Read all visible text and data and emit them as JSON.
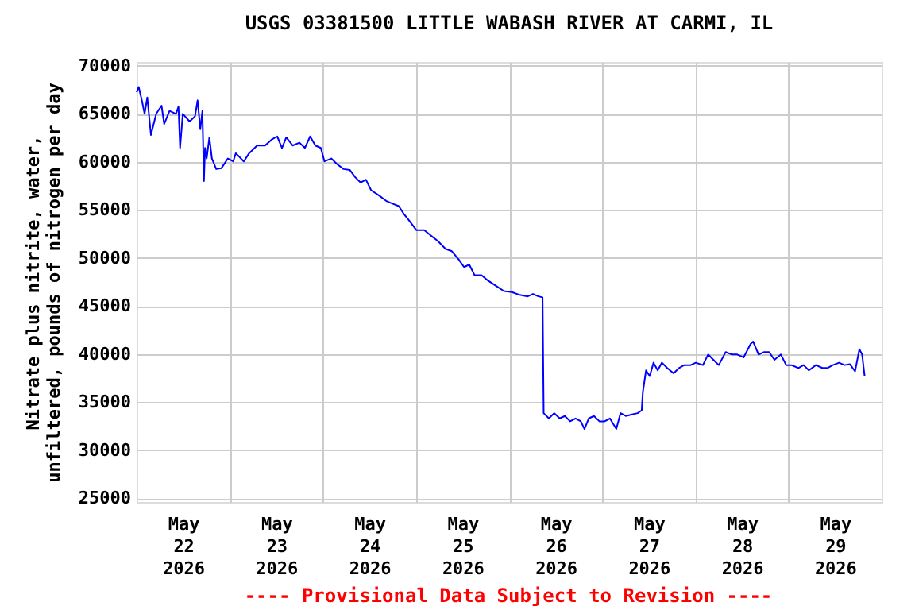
{
  "chart_data": {
    "type": "line",
    "title": "USGS 03381500 LITTLE WABASH RIVER AT CARMI, IL",
    "ylabel": "Nitrate plus nitrite, water,\nunfiltered, pounds of nitrogen per day",
    "annotations": [
      "---- Provisional Data Subject to Revision ----"
    ],
    "x": [
      "2026-05-22T00:00",
      "2026-05-22T00:32",
      "2026-05-22T01:21",
      "2026-05-22T02:03",
      "2026-05-22T02:45",
      "2026-05-22T03:17",
      "2026-05-22T03:41",
      "2026-05-22T05:03",
      "2026-05-22T06:26",
      "2026-05-22T07:06",
      "2026-05-22T08:29",
      "2026-05-22T10:08",
      "2026-05-22T10:47",
      "2026-05-22T11:12",
      "2026-05-22T11:54",
      "2026-05-22T13:40",
      "2026-05-22T15:03",
      "2026-05-22T15:43",
      "2026-05-22T16:25",
      "2026-05-22T16:57",
      "2026-05-22T17:21",
      "2026-05-22T17:38",
      "2026-05-22T18:03",
      "2026-05-22T18:45",
      "2026-05-22T19:24",
      "2026-05-22T20:31",
      "2026-05-22T21:52",
      "2026-05-22T23:31",
      "2026-05-23T00:54",
      "2026-05-23T01:34",
      "2026-05-23T03:37",
      "2026-05-23T05:00",
      "2026-05-23T07:03",
      "2026-05-23T09:06",
      "2026-05-23T10:45",
      "2026-05-23T12:14",
      "2026-05-23T13:28",
      "2026-05-23T14:34",
      "2026-05-23T16:12",
      "2026-05-23T17:58",
      "2026-05-23T19:22",
      "2026-05-23T20:43",
      "2026-05-23T22:04",
      "2026-05-23T23:28",
      "2026-05-24T00:25",
      "2026-05-24T02:10",
      "2026-05-24T03:34",
      "2026-05-24T05:20",
      "2026-05-24T06:58",
      "2026-05-24T08:20",
      "2026-05-24T09:43",
      "2026-05-24T11:05",
      "2026-05-24T12:26",
      "2026-05-24T14:29",
      "2026-05-24T16:17",
      "2026-05-24T17:56",
      "2026-05-24T19:34",
      "2026-05-24T20:55",
      "2026-05-24T22:02",
      "2026-05-25T00:05",
      "2026-05-25T02:08",
      "2026-05-25T03:46",
      "2026-05-25T05:32",
      "2026-05-25T07:35",
      "2026-05-25T09:14",
      "2026-05-25T11:00",
      "2026-05-25T12:23",
      "2026-05-25T13:44",
      "2026-05-25T15:06",
      "2026-05-25T16:54",
      "2026-05-25T18:32",
      "2026-05-25T20:36",
      "2026-05-25T22:39",
      "2026-05-26T00:42",
      "2026-05-26T02:45",
      "2026-05-26T04:48",
      "2026-05-26T06:09",
      "2026-05-26T07:31",
      "2026-05-26T08:37",
      "2026-05-26T08:54",
      "2026-05-26T10:15",
      "2026-05-26T11:37",
      "2026-05-26T13:01",
      "2026-05-26T14:22",
      "2026-05-26T15:43",
      "2026-05-26T17:07",
      "2026-05-26T18:28",
      "2026-05-26T19:25",
      "2026-05-26T20:31",
      "2026-05-26T21:52",
      "2026-05-26T23:16",
      "2026-05-27T00:37",
      "2026-05-27T01:58",
      "2026-05-27T03:37",
      "2026-05-27T04:43",
      "2026-05-27T06:04",
      "2026-05-27T07:28",
      "2026-05-27T09:07",
      "2026-05-27T10:10",
      "2026-05-27T10:28",
      "2026-05-27T11:17",
      "2026-05-27T12:14",
      "2026-05-27T13:13",
      "2026-05-27T14:17",
      "2026-05-27T15:23",
      "2026-05-27T16:44",
      "2026-05-27T18:23",
      "2026-05-27T19:47",
      "2026-05-27T21:08",
      "2026-05-27T22:46",
      "2026-05-28T00:07",
      "2026-05-28T01:56",
      "2026-05-28T03:17",
      "2026-05-28T04:38",
      "2026-05-28T06:02",
      "2026-05-28T07:48",
      "2026-05-28T09:26",
      "2026-05-28T10:47",
      "2026-05-28T12:26",
      "2026-05-28T14:14",
      "2026-05-28T14:53",
      "2026-05-28T16:17",
      "2026-05-28T17:38",
      "2026-05-28T19:00",
      "2026-05-28T20:23",
      "2026-05-28T22:02",
      "2026-05-28T23:23",
      "2026-05-29T00:44",
      "2026-05-29T02:32",
      "2026-05-29T03:54",
      "2026-05-29T05:15",
      "2026-05-29T07:04",
      "2026-05-29T08:42",
      "2026-05-29T10:03",
      "2026-05-29T11:25",
      "2026-05-29T13:03",
      "2026-05-29T14:26",
      "2026-05-29T15:48",
      "2026-05-29T17:09",
      "2026-05-29T18:16",
      "2026-05-29T18:58",
      "2026-05-29T19:37"
    ],
    "series": [
      {
        "color": "#0000ff",
        "values": [
          67250,
          67800,
          66400,
          65000,
          66700,
          64500,
          62800,
          65000,
          65850,
          63950,
          65300,
          65000,
          65750,
          61450,
          65000,
          64200,
          64750,
          66400,
          63400,
          65300,
          58000,
          61450,
          60350,
          62550,
          60350,
          59250,
          59350,
          60350,
          60050,
          60900,
          60050,
          60900,
          61700,
          61700,
          62300,
          62650,
          61450,
          62550,
          61700,
          62000,
          61450,
          62650,
          61700,
          61450,
          60050,
          60350,
          59800,
          59250,
          59150,
          58400,
          57850,
          58150,
          57050,
          56500,
          55950,
          55650,
          55400,
          54550,
          54000,
          52900,
          52900,
          52350,
          51800,
          50950,
          50700,
          49850,
          49050,
          49300,
          48200,
          48200,
          47650,
          47100,
          46550,
          46450,
          46150,
          46000,
          46250,
          46000,
          45900,
          33850,
          33300,
          33850,
          33300,
          33550,
          33000,
          33300,
          33000,
          32200,
          33300,
          33550,
          33000,
          33000,
          33300,
          32200,
          33850,
          33550,
          33700,
          33850,
          34150,
          36050,
          38300,
          37700,
          39100,
          38300,
          39100,
          38550,
          38000,
          38550,
          38850,
          38850,
          39100,
          38850,
          39950,
          39400,
          38850,
          40200,
          39950,
          39950,
          39650,
          41050,
          41300,
          39950,
          40200,
          40200,
          39400,
          39950,
          38850,
          38850,
          38550,
          38850,
          38300,
          38850,
          38550,
          38550,
          38850,
          39100,
          38850,
          38950,
          38200,
          40500,
          39950,
          37700
        ]
      }
    ],
    "xlim": [
      "2026-05-22T00:00",
      "2026-05-30T00:00"
    ],
    "xticks": [
      {
        "value": "2026-05-22T12:00",
        "label": "May\n22\n2026"
      },
      {
        "value": "2026-05-23T12:00",
        "label": "May\n23\n2026"
      },
      {
        "value": "2026-05-24T12:00",
        "label": "May\n24\n2026"
      },
      {
        "value": "2026-05-25T12:00",
        "label": "May\n25\n2026"
      },
      {
        "value": "2026-05-26T12:00",
        "label": "May\n26\n2026"
      },
      {
        "value": "2026-05-27T12:00",
        "label": "May\n27\n2026"
      },
      {
        "value": "2026-05-28T12:00",
        "label": "May\n28\n2026"
      },
      {
        "value": "2026-05-29T12:00",
        "label": "May\n29\n2026"
      },
      {
        "value": "2026-05-23T00:00",
        "label": null
      },
      {
        "value": "2026-05-24T00:00",
        "label": null
      },
      {
        "value": "2026-05-25T00:00",
        "label": null
      },
      {
        "value": "2026-05-26T00:00",
        "label": null
      },
      {
        "value": "2026-05-27T00:00",
        "label": null
      },
      {
        "value": "2026-05-28T00:00",
        "label": null
      },
      {
        "value": "2026-05-29T00:00",
        "label": null
      }
    ],
    "ylim": [
      24600,
      70400
    ],
    "yticks": [
      25000,
      30000,
      35000,
      40000,
      45000,
      50000,
      55000,
      60000,
      65000,
      70000
    ],
    "grid": true,
    "line_style": "solid",
    "marker": "none"
  }
}
